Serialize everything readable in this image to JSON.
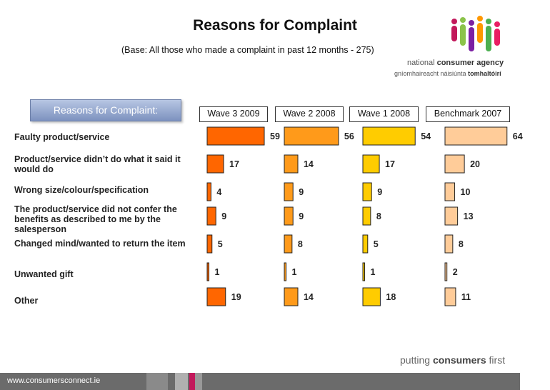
{
  "slide": {
    "title": "Reasons for Complaint",
    "subtitle": "(Base: All those who made a complaint in past 12 months - 275)",
    "header_box": "Reasons for Complaint:",
    "logo": {
      "line1_a": "national ",
      "line1_b": "consumer agency",
      "line2_a": "gníomhaireacht náisiúnta ",
      "line2_b": "tomhaltóirí"
    },
    "footer_url": "www.consumersconnect.ie",
    "tagline_a": "putting ",
    "tagline_b": "consumers",
    "tagline_c": " first"
  },
  "chart_data": {
    "type": "bar",
    "orientation": "horizontal",
    "categories": [
      "Faulty product/service",
      "Product/service didn’t do what it said it would do",
      "Wrong size/colour/specification",
      "The product/service did not confer the benefits as described to me by the salesperson",
      "Changed mind/wanted to return the item",
      "Unwanted gift",
      "Other"
    ],
    "series": [
      {
        "name": "Wave 3 2009",
        "values": [
          59,
          17,
          4,
          9,
          5,
          1,
          19
        ],
        "color": "#ff6600"
      },
      {
        "name": "Wave 2 2008",
        "values": [
          56,
          14,
          9,
          9,
          8,
          1,
          14
        ],
        "color": "#ff9a1a"
      },
      {
        "name": "Wave 1 2008",
        "values": [
          54,
          17,
          9,
          8,
          5,
          1,
          18
        ],
        "color": "#ffcc00"
      },
      {
        "name": "Benchmark 2007",
        "values": [
          64,
          20,
          10,
          13,
          8,
          2,
          11
        ],
        "color": "#ffcc99"
      }
    ],
    "grid": false,
    "legend": "column headers"
  }
}
